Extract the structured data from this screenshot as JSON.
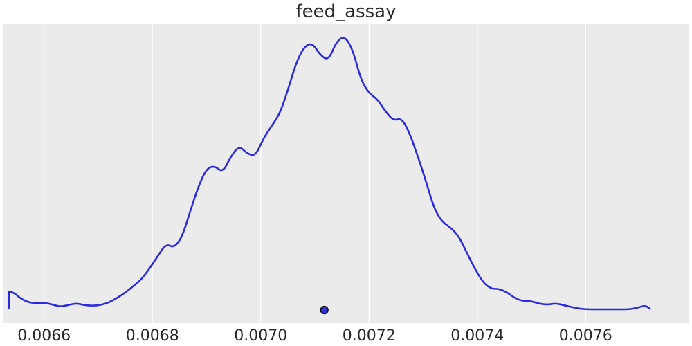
{
  "chart_data": {
    "type": "line",
    "title": "feed_assay",
    "xlabel": "",
    "ylabel": "",
    "xlim": [
      0.006525,
      0.00779
    ],
    "ylim": [
      0,
      1.05
    ],
    "grid": true,
    "x_ticks": [
      0.0066,
      0.0068,
      0.007,
      0.0072,
      0.0074,
      0.0076
    ],
    "x_tick_labels": [
      "0.0066",
      "0.0068",
      "0.0070",
      "0.0072",
      "0.0074",
      "0.0076"
    ],
    "background_color": "#ebebeb",
    "series": [
      {
        "color": "#2a2ae0",
        "x": [
          0.006535,
          0.006545,
          0.006555,
          0.00657,
          0.006585,
          0.0066,
          0.006615,
          0.00663,
          0.006645,
          0.00666,
          0.006675,
          0.00669,
          0.006705,
          0.00672,
          0.006735,
          0.00675,
          0.006765,
          0.00678,
          0.006795,
          0.00681,
          0.006825,
          0.00684,
          0.006855,
          0.00687,
          0.006885,
          0.0069,
          0.006915,
          0.00693,
          0.006945,
          0.00696,
          0.006975,
          0.00699,
          0.007005,
          0.00702,
          0.007035,
          0.00705,
          0.007065,
          0.00708,
          0.007095,
          0.00711,
          0.007125,
          0.00714,
          0.007155,
          0.00717,
          0.007185,
          0.0072,
          0.007215,
          0.00723,
          0.007245,
          0.00726,
          0.007275,
          0.00729,
          0.007305,
          0.00732,
          0.007335,
          0.00735,
          0.007365,
          0.00738,
          0.007395,
          0.00741,
          0.007425,
          0.00744,
          0.007455,
          0.00747,
          0.007485,
          0.0075,
          0.007515,
          0.00753,
          0.007545,
          0.00756,
          0.007575,
          0.00759,
          0.007605,
          0.00762,
          0.007635,
          0.00765,
          0.007665,
          0.00768,
          0.007695,
          0.00771,
          0.00772
        ],
        "y": [
          0.065,
          0.06,
          0.042,
          0.026,
          0.022,
          0.024,
          0.018,
          0.009,
          0.016,
          0.022,
          0.015,
          0.013,
          0.016,
          0.025,
          0.042,
          0.061,
          0.085,
          0.11,
          0.15,
          0.195,
          0.24,
          0.225,
          0.265,
          0.36,
          0.45,
          0.515,
          0.525,
          0.5,
          0.56,
          0.598,
          0.57,
          0.56,
          0.625,
          0.67,
          0.715,
          0.8,
          0.9,
          0.96,
          0.975,
          0.93,
          0.91,
          0.98,
          1.0,
          0.95,
          0.84,
          0.79,
          0.77,
          0.725,
          0.69,
          0.7,
          0.645,
          0.56,
          0.47,
          0.37,
          0.32,
          0.3,
          0.27,
          0.21,
          0.15,
          0.1,
          0.075,
          0.075,
          0.062,
          0.04,
          0.03,
          0.03,
          0.02,
          0.017,
          0.022,
          0.015,
          0.008,
          0.002,
          0.0,
          0.0,
          0.0,
          0.0,
          0.0,
          0.0,
          0.005,
          0.015,
          0.0
        ]
      }
    ],
    "point_estimate": {
      "x": 0.0071175,
      "color": "#3333cc"
    }
  }
}
